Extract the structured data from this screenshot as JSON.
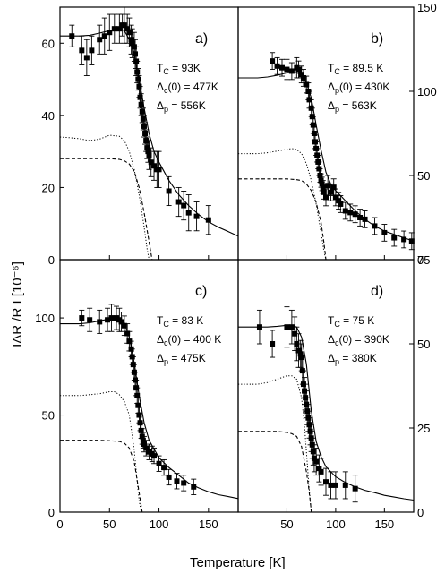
{
  "figure": {
    "ylabel": "IΔR /R I  [10⁻⁶]",
    "xlabel": "Temperature [K]"
  },
  "chart_data": [
    {
      "type": "scatter",
      "panel_label": "a)",
      "annotations": [
        "T_C = 93K",
        "Δ_c(0) = 477K",
        "Δ_p = 556K"
      ],
      "x_range": [
        0,
        180
      ],
      "y_range": [
        0,
        70
      ],
      "y_ticks": [
        0,
        20,
        40,
        60
      ],
      "y_axis_side": "left",
      "x_ticks": [],
      "series": [
        {
          "style": "points",
          "x": [
            12,
            22,
            27,
            32,
            40,
            45,
            50,
            55,
            60,
            63,
            65,
            68,
            70,
            72,
            73,
            75,
            76,
            77,
            78,
            79,
            80,
            81,
            82,
            83,
            84,
            85,
            86,
            87,
            88,
            89,
            90,
            92,
            95,
            98,
            100,
            110,
            120,
            125,
            130,
            138,
            150
          ],
          "y": [
            62,
            58,
            56,
            58,
            61,
            62,
            63,
            64,
            64,
            65,
            65,
            64,
            63,
            61,
            60,
            59,
            57,
            55,
            52,
            50,
            48,
            45,
            43,
            41,
            39,
            37,
            35,
            33,
            31,
            30,
            29,
            27,
            26,
            25,
            25,
            19,
            16,
            15,
            13,
            12,
            11
          ],
          "err": [
            3,
            4,
            5,
            4,
            4,
            5,
            5,
            4,
            4,
            3,
            5,
            4,
            4,
            4,
            4,
            4,
            4,
            4,
            3,
            3,
            3,
            3,
            3,
            3,
            3,
            3,
            3,
            3,
            3,
            3,
            4,
            4,
            4,
            5,
            5,
            4,
            4,
            4,
            5,
            4,
            4
          ]
        },
        {
          "style": "solid",
          "x": [
            0,
            10,
            20,
            30,
            40,
            50,
            60,
            65,
            70,
            75,
            80,
            85,
            90,
            95,
            100,
            110,
            120,
            130,
            140,
            150,
            160,
            170,
            180
          ],
          "y": [
            62,
            62,
            62,
            62.2,
            62.8,
            63.5,
            64,
            63.5,
            61,
            57,
            50,
            42,
            35,
            30,
            27,
            22,
            18,
            15,
            12.5,
            10.5,
            9,
            7.8,
            6.5
          ]
        },
        {
          "style": "dotted",
          "x": [
            0,
            10,
            20,
            30,
            40,
            50,
            60,
            65,
            70,
            75,
            80,
            85,
            88,
            90
          ],
          "y": [
            34,
            33.8,
            33.5,
            33,
            33.4,
            34.5,
            34.2,
            33,
            30,
            25,
            18,
            9,
            3,
            0
          ]
        },
        {
          "style": "dashed",
          "x": [
            0,
            10,
            20,
            30,
            40,
            50,
            60,
            65,
            70,
            75,
            80,
            85,
            90,
            93
          ],
          "y": [
            28,
            28,
            28,
            28,
            28,
            28,
            27.8,
            27.4,
            26.5,
            24.5,
            20,
            13,
            5,
            0
          ]
        }
      ]
    },
    {
      "type": "scatter",
      "panel_label": "b)",
      "annotations": [
        "T_C = 89.5 K",
        "Δ_p(0) = 430K",
        "Δ_p = 563K"
      ],
      "x_range": [
        0,
        180
      ],
      "y_range": [
        0,
        150
      ],
      "y_ticks": [
        0,
        50,
        100,
        150
      ],
      "y_axis_side": "right",
      "x_ticks": [],
      "series": [
        {
          "style": "points",
          "x": [
            35,
            40,
            45,
            50,
            55,
            60,
            62,
            65,
            67,
            70,
            72,
            73,
            75,
            76,
            77,
            78,
            79,
            80,
            81,
            82,
            83,
            84,
            85,
            86,
            87,
            88,
            90,
            92,
            95,
            98,
            100,
            103,
            105,
            110,
            115,
            120,
            125,
            130,
            140,
            150,
            160,
            170,
            178
          ],
          "y": [
            118,
            115,
            114,
            113,
            112,
            114,
            113,
            110,
            108,
            104,
            100,
            95,
            90,
            85,
            80,
            75,
            70,
            66,
            62,
            58,
            54,
            50,
            47,
            45,
            43,
            40,
            37,
            44,
            40,
            43,
            37,
            35,
            33,
            29,
            28,
            27,
            25,
            24,
            20,
            16,
            13,
            12,
            11
          ],
          "err": [
            5,
            5,
            5,
            6,
            5,
            6,
            5,
            5,
            5,
            5,
            5,
            5,
            5,
            5,
            5,
            4,
            4,
            4,
            4,
            4,
            4,
            4,
            4,
            4,
            4,
            4,
            5,
            6,
            5,
            5,
            5,
            5,
            5,
            5,
            5,
            5,
            5,
            5,
            5,
            5,
            5,
            5,
            5
          ]
        },
        {
          "style": "solid",
          "x": [
            0,
            10,
            20,
            30,
            40,
            50,
            60,
            65,
            70,
            75,
            80,
            85,
            90,
            95,
            100,
            110,
            120,
            130,
            140,
            150,
            160,
            170,
            180
          ],
          "y": [
            108,
            108,
            108,
            108.5,
            109.5,
            111,
            111,
            110,
            105,
            96,
            80,
            65,
            52,
            45,
            41,
            35,
            29,
            24,
            20,
            17,
            15,
            13,
            11
          ]
        },
        {
          "style": "dotted",
          "x": [
            0,
            10,
            20,
            30,
            40,
            50,
            55,
            60,
            65,
            70,
            75,
            80,
            85,
            88,
            90
          ],
          "y": [
            63,
            63,
            63,
            63.5,
            64.5,
            65.5,
            66,
            65.5,
            63,
            57,
            47,
            33,
            16,
            5,
            0
          ]
        },
        {
          "style": "dashed",
          "x": [
            0,
            10,
            20,
            30,
            40,
            50,
            60,
            65,
            70,
            75,
            80,
            85,
            88,
            90
          ],
          "y": [
            48,
            48,
            48,
            48,
            48,
            48,
            47.5,
            47,
            45,
            41,
            34,
            22,
            10,
            0
          ]
        }
      ]
    },
    {
      "type": "scatter",
      "panel_label": "c)",
      "annotations": [
        "T_C = 83 K",
        "Δ_c(0) = 400 K",
        "Δ_p = 475K"
      ],
      "x_range": [
        0,
        180
      ],
      "y_range": [
        0,
        130
      ],
      "y_ticks": [
        0,
        50,
        100
      ],
      "y_axis_side": "left",
      "x_ticks": [
        0,
        50,
        100,
        150
      ],
      "series": [
        {
          "style": "points",
          "x": [
            22,
            30,
            40,
            48,
            52,
            57,
            60,
            62,
            65,
            68,
            70,
            72,
            73,
            74,
            75,
            76,
            77,
            78,
            79,
            80,
            81,
            82,
            83,
            84,
            85,
            87,
            90,
            93,
            95,
            100,
            105,
            110,
            118,
            125,
            135
          ],
          "y": [
            100,
            99,
            98,
            99,
            100,
            100,
            99,
            98,
            96,
            92,
            88,
            84,
            80,
            76,
            72,
            68,
            64,
            60,
            55,
            50,
            46,
            42,
            39,
            37,
            35,
            33,
            31,
            30,
            29,
            25,
            23,
            18,
            16,
            15,
            13
          ],
          "err": [
            4,
            6,
            6,
            6,
            7,
            6,
            6,
            5,
            5,
            5,
            5,
            4,
            4,
            4,
            4,
            4,
            4,
            4,
            4,
            4,
            4,
            4,
            4,
            4,
            4,
            4,
            4,
            4,
            4,
            4,
            4,
            4,
            4,
            4,
            4
          ]
        },
        {
          "style": "solid",
          "x": [
            0,
            10,
            20,
            30,
            40,
            50,
            60,
            65,
            70,
            75,
            80,
            85,
            90,
            100,
            110,
            120,
            130,
            140,
            150,
            160,
            170,
            180
          ],
          "y": [
            97,
            97,
            97,
            97.5,
            98.5,
            99.5,
            99.5,
            97.5,
            90,
            77,
            60,
            46,
            37,
            28,
            23,
            19,
            15,
            12.5,
            10.5,
            9,
            8,
            7
          ]
        },
        {
          "style": "dotted",
          "x": [
            0,
            10,
            20,
            30,
            40,
            50,
            55,
            60,
            65,
            70,
            75,
            78,
            80,
            82
          ],
          "y": [
            60,
            60,
            60,
            60.5,
            61,
            62,
            62,
            60.5,
            57,
            50,
            32,
            16,
            6,
            0
          ]
        },
        {
          "style": "dashed",
          "x": [
            0,
            10,
            20,
            30,
            40,
            50,
            60,
            65,
            70,
            75,
            80,
            83
          ],
          "y": [
            37,
            37,
            37,
            37,
            37,
            36.8,
            36.4,
            35.5,
            33,
            26,
            10,
            0
          ]
        }
      ]
    },
    {
      "type": "scatter",
      "panel_label": "d)",
      "annotations": [
        "T_C = 75 K",
        "Δ_c(0) = 390K",
        "Δ_p = 380K"
      ],
      "x_range": [
        0,
        180
      ],
      "y_range": [
        0,
        75
      ],
      "y_ticks": [
        0,
        25,
        50,
        75
      ],
      "y_axis_side": "right",
      "x_ticks": [
        0,
        50,
        100,
        150
      ],
      "series": [
        {
          "style": "points",
          "x": [
            22,
            35,
            50,
            55,
            58,
            60,
            62,
            64,
            65,
            66,
            67,
            68,
            69,
            70,
            71,
            72,
            73,
            74,
            75,
            76,
            77,
            78,
            80,
            83,
            85,
            90,
            95,
            100,
            110,
            120
          ],
          "y": [
            55,
            50,
            55,
            55,
            53,
            50,
            48,
            47,
            46,
            42,
            38,
            36,
            34,
            32,
            30,
            28,
            26,
            24,
            22,
            20,
            18,
            16,
            15,
            13,
            12,
            9,
            8,
            8,
            8,
            7
          ],
          "err": [
            5,
            4,
            6,
            5,
            5,
            5,
            5,
            4,
            4,
            4,
            4,
            4,
            4,
            4,
            4,
            4,
            4,
            4,
            4,
            4,
            4,
            4,
            4,
            4,
            4,
            4,
            4,
            4,
            4,
            4
          ]
        },
        {
          "style": "solid",
          "x": [
            0,
            10,
            20,
            30,
            40,
            50,
            55,
            60,
            65,
            70,
            75,
            80,
            85,
            90,
            100,
            110,
            120,
            130,
            140,
            150,
            160,
            170,
            180
          ],
          "y": [
            55,
            55,
            55,
            55,
            55.2,
            55.5,
            55.5,
            55,
            52,
            44,
            30,
            21,
            16.5,
            13.5,
            10.5,
            8.8,
            7.5,
            6.5,
            5.8,
            5,
            4.5,
            4,
            3.6
          ]
        },
        {
          "style": "dotted",
          "x": [
            0,
            10,
            20,
            30,
            40,
            50,
            55,
            60,
            65,
            68,
            70,
            72,
            74,
            75
          ],
          "y": [
            38,
            38,
            38,
            38.5,
            39.5,
            40.5,
            40.5,
            39.5,
            34,
            26,
            18,
            10,
            3,
            0
          ]
        },
        {
          "style": "dashed",
          "x": [
            0,
            10,
            20,
            30,
            40,
            50,
            55,
            60,
            65,
            70,
            72,
            74,
            75
          ],
          "y": [
            24,
            24,
            24,
            24,
            24,
            23.7,
            23.3,
            22.5,
            19.5,
            12,
            8,
            3,
            0
          ]
        }
      ]
    }
  ]
}
